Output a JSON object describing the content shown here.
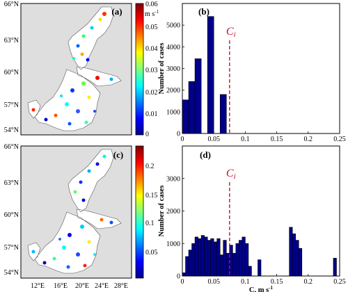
{
  "maps": {
    "lat_ticks": [
      "66°N",
      "63°N",
      "60°N",
      "57°N",
      "54°N"
    ],
    "lon_ticks": [
      "12°E",
      "16°E",
      "20°E",
      "24°E",
      "28°E"
    ]
  },
  "colorbars": [
    {
      "ticks": [
        "0.06",
        "0.05",
        "0.04",
        "0.03",
        "0.02",
        "0.01",
        "0"
      ],
      "unit": "m s-1"
    },
    {
      "ticks": [
        "0.2",
        "0.15",
        "0.1",
        "0.05"
      ],
      "unit": ""
    }
  ],
  "panel_labels": [
    "(a)",
    "(b)",
    "(c)",
    "(d)"
  ],
  "ci_label": "Ci",
  "chart_data": [
    {
      "type": "bar",
      "panel": "(b)",
      "xlabel": "",
      "ylabel": "Number of cases",
      "xlim": [
        0,
        0.25
      ],
      "ylim": [
        0,
        6000
      ],
      "xticks": [
        "0",
        "0.05",
        "0.1",
        "0.15",
        "0.2",
        "0.25"
      ],
      "yticks": [
        "0",
        "1000",
        "2000",
        "3000",
        "4000",
        "5000"
      ],
      "bin_width": 0.01,
      "bins": [
        {
          "x": 0.005,
          "value": 1550
        },
        {
          "x": 0.015,
          "value": 2400
        },
        {
          "x": 0.025,
          "value": 3450
        },
        {
          "x": 0.045,
          "value": 5400
        },
        {
          "x": 0.065,
          "value": 1800
        }
      ],
      "ci": 0.075
    },
    {
      "type": "bar",
      "panel": "(d)",
      "xlabel": "C, m s-1",
      "ylabel": "Number of cases",
      "xlim": [
        0,
        0.25
      ],
      "ylim": [
        0,
        4000
      ],
      "xticks": [
        "0",
        "0.05",
        "0.1",
        "0.15",
        "0.2",
        "0.25"
      ],
      "yticks": [
        "0",
        "1000",
        "2000",
        "3000"
      ],
      "bin_width": 0.005,
      "bins": [
        {
          "x": 0.0025,
          "value": 100
        },
        {
          "x": 0.0075,
          "value": 600
        },
        {
          "x": 0.0125,
          "value": 800
        },
        {
          "x": 0.0175,
          "value": 1000
        },
        {
          "x": 0.0225,
          "value": 1200
        },
        {
          "x": 0.0275,
          "value": 1150
        },
        {
          "x": 0.0325,
          "value": 1250
        },
        {
          "x": 0.0375,
          "value": 1200
        },
        {
          "x": 0.0425,
          "value": 1100
        },
        {
          "x": 0.0475,
          "value": 1150
        },
        {
          "x": 0.0525,
          "value": 1050
        },
        {
          "x": 0.0575,
          "value": 1150
        },
        {
          "x": 0.0625,
          "value": 650
        },
        {
          "x": 0.0675,
          "value": 1100
        },
        {
          "x": 0.0725,
          "value": 700
        },
        {
          "x": 0.0775,
          "value": 950
        },
        {
          "x": 0.0825,
          "value": 700
        },
        {
          "x": 0.0875,
          "value": 1000
        },
        {
          "x": 0.0925,
          "value": 1100
        },
        {
          "x": 0.0975,
          "value": 1200
        },
        {
          "x": 0.1025,
          "value": 1000
        },
        {
          "x": 0.1075,
          "value": 300
        },
        {
          "x": 0.1225,
          "value": 500
        },
        {
          "x": 0.1725,
          "value": 1500
        },
        {
          "x": 0.1775,
          "value": 1300
        },
        {
          "x": 0.1825,
          "value": 1100
        },
        {
          "x": 0.1875,
          "value": 850
        },
        {
          "x": 0.2425,
          "value": 550
        }
      ],
      "ci": 0.075
    }
  ]
}
